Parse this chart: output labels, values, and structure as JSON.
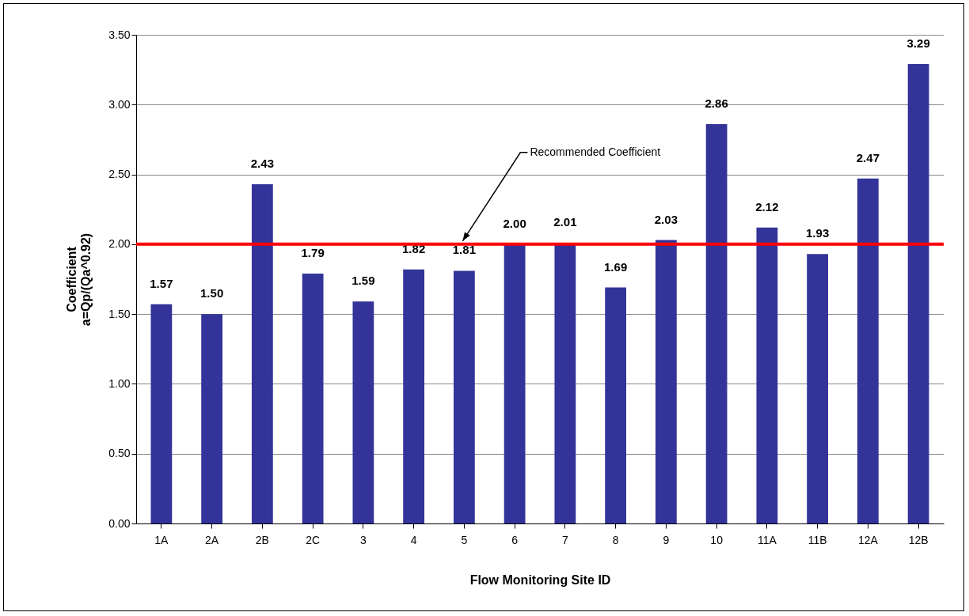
{
  "chart_data": {
    "type": "bar",
    "xlabel": "Flow Monitoring Site ID",
    "ylabel": "Coefficient\na=Qp/(Qa^0.92)",
    "categories": [
      "1A",
      "2A",
      "2B",
      "2C",
      "3",
      "4",
      "5",
      "6",
      "7",
      "8",
      "9",
      "10",
      "11A",
      "11B",
      "12A",
      "12B"
    ],
    "values": [
      1.57,
      1.5,
      2.43,
      1.79,
      1.59,
      1.82,
      1.81,
      2.0,
      2.01,
      1.69,
      2.03,
      2.86,
      2.12,
      1.93,
      2.47,
      3.29
    ],
    "value_labels": [
      "1.57",
      "1.50",
      "2.43",
      "1.79",
      "1.59",
      "1.82",
      "1.81",
      "2.00",
      "2.01",
      "1.69",
      "2.03",
      "2.86",
      "2.12",
      "1.93",
      "2.47",
      "3.29"
    ],
    "color": "#333399",
    "ylim": [
      0,
      3.5
    ],
    "yticks": [
      {
        "value": 0,
        "label": "0.00"
      },
      {
        "value": 0.5,
        "label": "0.50"
      },
      {
        "value": 1,
        "label": "1.00"
      },
      {
        "value": 1.5,
        "label": "1.50"
      },
      {
        "value": 2,
        "label": "2.00"
      },
      {
        "value": 2.5,
        "label": "2.50"
      },
      {
        "value": 3,
        "label": "3.00"
      },
      {
        "value": 3.5,
        "label": "3.50"
      }
    ],
    "grid": "y",
    "ref_lines": [
      {
        "axis": "y",
        "value": 2.0,
        "color": "#ff0000"
      }
    ],
    "annotations": [
      {
        "text": "Recommended Coefficient",
        "x": "5",
        "y": 2.0
      }
    ]
  }
}
